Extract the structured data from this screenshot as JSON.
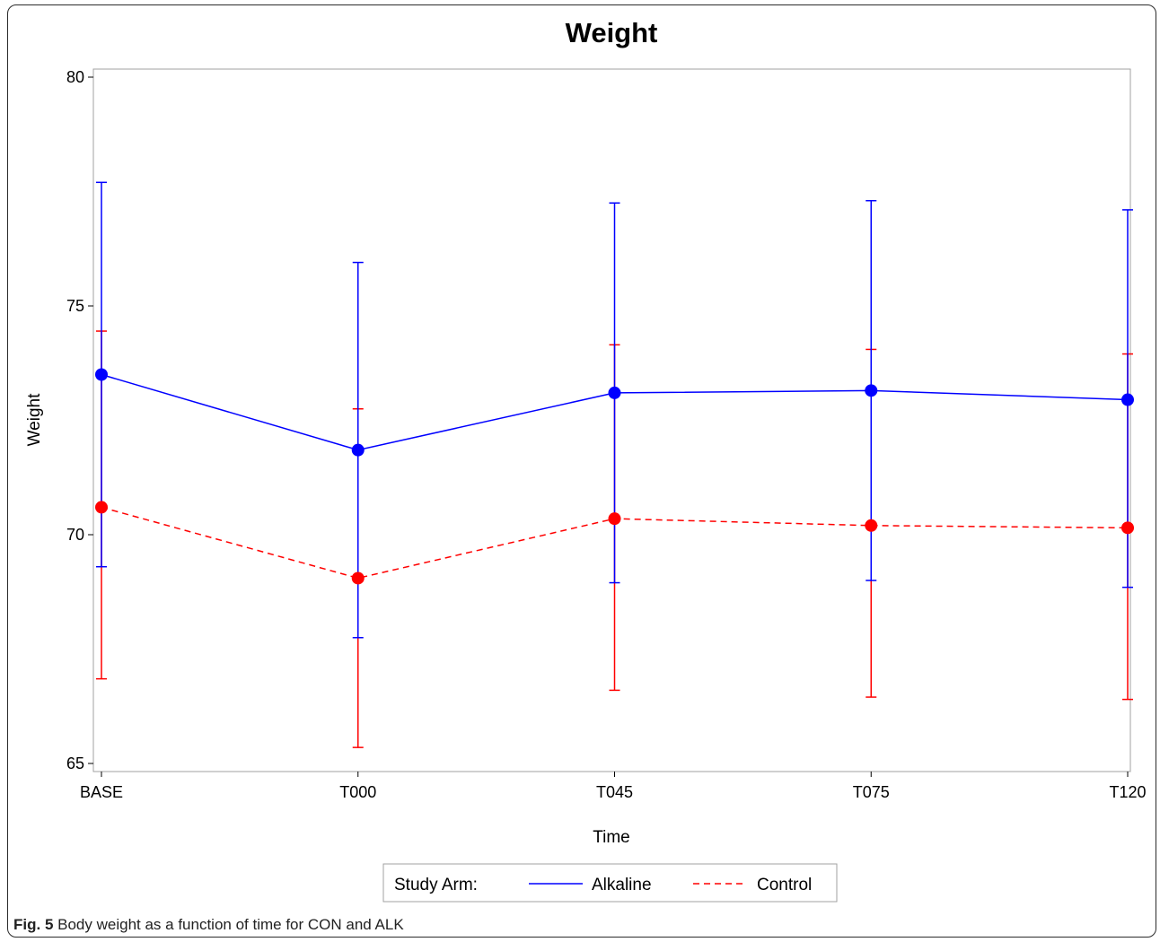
{
  "chart_data": {
    "type": "line",
    "title": "Weight",
    "xlabel": "Time",
    "ylabel": "Weight",
    "categories": [
      "BASE",
      "T000",
      "T045",
      "T075",
      "T120"
    ],
    "ylim": [
      65,
      80
    ],
    "yticks": [
      65,
      70,
      75,
      80
    ],
    "grid": false,
    "legend": {
      "title": "Study Arm:",
      "position": "bottom-center"
    },
    "series": [
      {
        "name": "Alkaline",
        "color": "#0000ff",
        "style": "solid",
        "values": [
          73.5,
          71.85,
          73.1,
          73.15,
          72.95
        ],
        "err_low": [
          69.3,
          67.75,
          68.95,
          69.0,
          68.85
        ],
        "err_high": [
          77.7,
          75.95,
          77.25,
          77.3,
          77.1
        ]
      },
      {
        "name": "Control",
        "color": "#ff0000",
        "style": "dashed",
        "values": [
          70.6,
          69.05,
          70.35,
          70.2,
          70.15
        ],
        "err_low": [
          66.85,
          65.35,
          66.6,
          66.45,
          66.4
        ],
        "err_high": [
          74.45,
          72.75,
          74.15,
          74.05,
          73.95
        ]
      }
    ]
  },
  "caption": {
    "label": "Fig. 5",
    "text": " Body weight as a function of time for CON and ALK"
  }
}
